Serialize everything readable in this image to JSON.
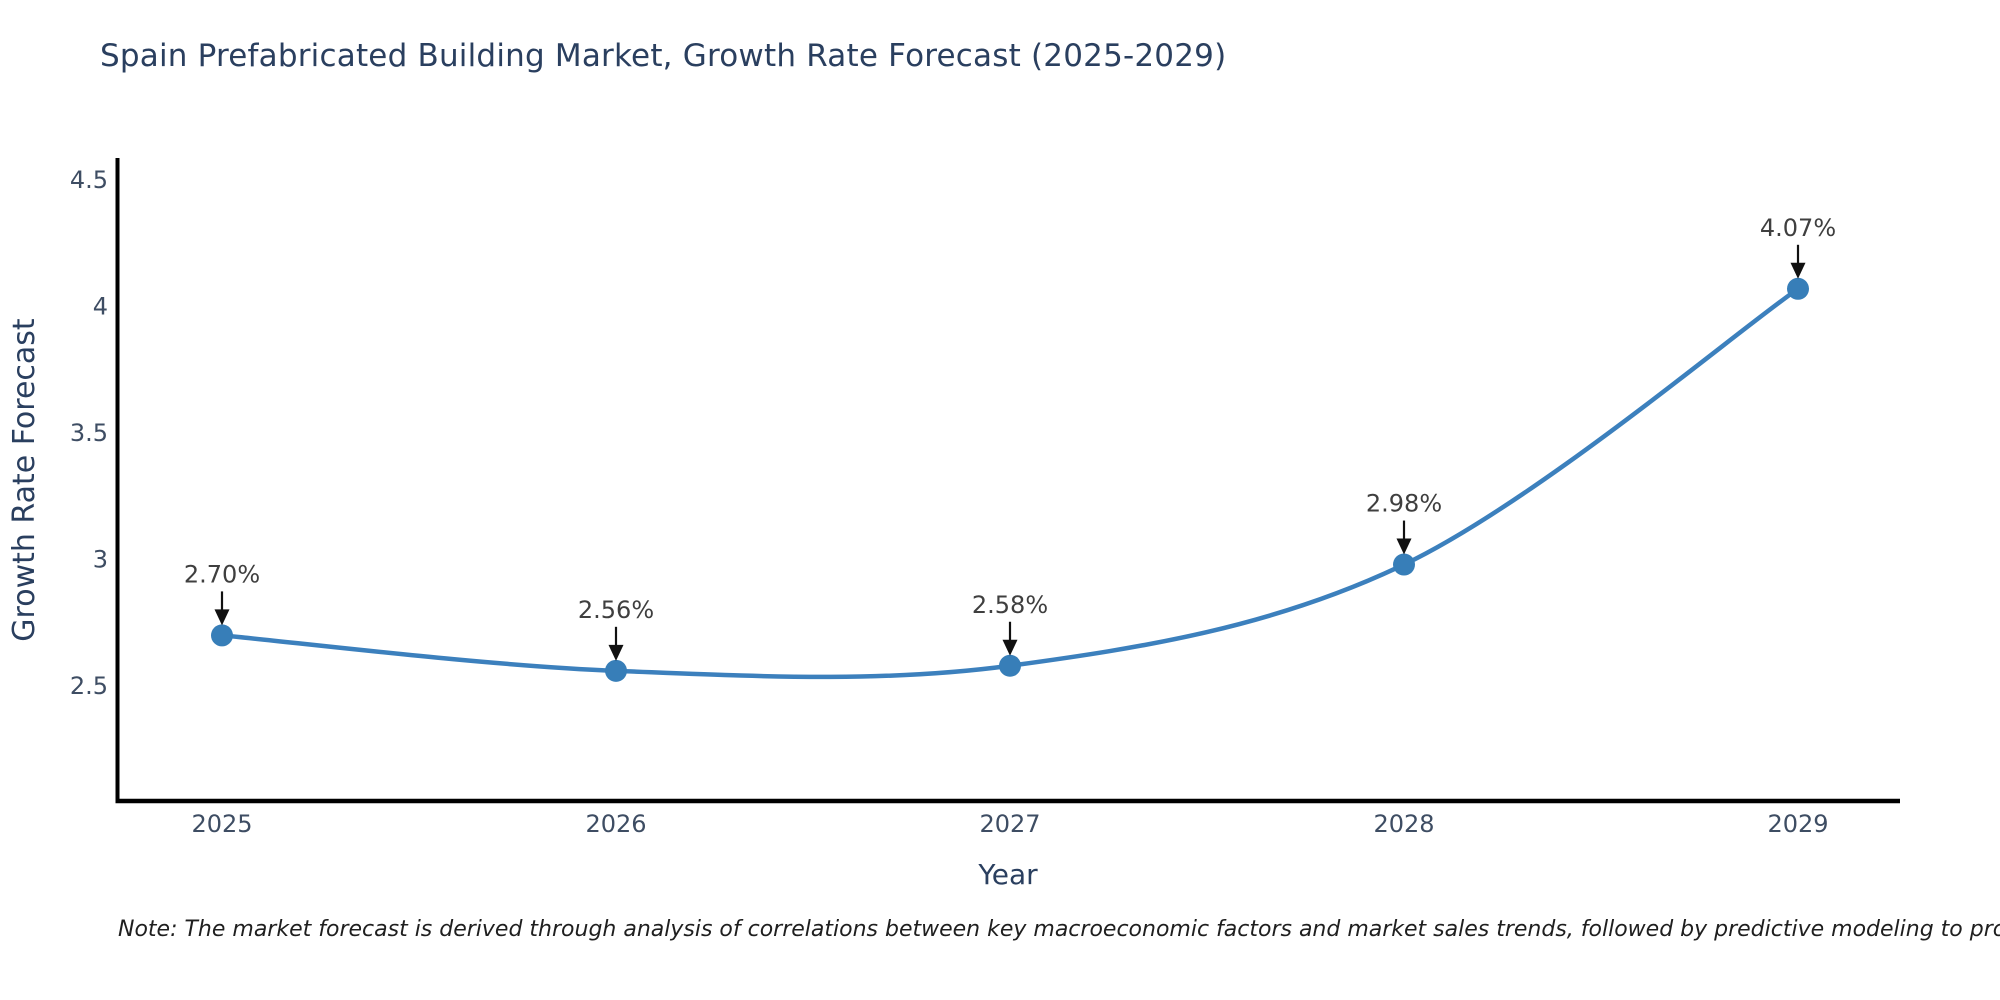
{
  "title": "Spain Prefabricated Building Market, Growth Rate Forecast (2025-2029)",
  "note": "Note: The market forecast is derived through analysis of correlations between key macroeconomic factors and market sales trends, followed by predictive modeling to project future sales",
  "chart_data": {
    "type": "line",
    "title": "Spain Prefabricated Building Market, Growth Rate Forecast (2025-2029)",
    "xlabel": "Year",
    "ylabel": "Growth Rate Forecast",
    "categories": [
      "2025",
      "2026",
      "2027",
      "2028",
      "2029"
    ],
    "series": [
      {
        "name": "Growth Rate Forecast",
        "values": [
          2.7,
          2.56,
          2.58,
          2.98,
          4.07
        ]
      }
    ],
    "point_labels": [
      "2.70%",
      "2.56%",
      "2.58%",
      "2.98%",
      "4.07%"
    ],
    "yticks": [
      "2.5",
      "3",
      "3.5",
      "4",
      "4.5"
    ],
    "ytick_values": [
      2.5,
      3.0,
      3.5,
      4.0,
      4.5
    ],
    "ylim": [
      2.05,
      4.55
    ],
    "grid": false,
    "legend": "none",
    "marker_style": "circle",
    "annotation_style": "value label with down arrow to point",
    "colors": {
      "line": "#3c80bd",
      "marker": "#377eb8",
      "axis_line": "#000000",
      "arrow": "#111111",
      "title_text": "#2a3f5f",
      "axis_title_text": "#2a3f5f",
      "tick_text": "#3e4d63",
      "annotation_text": "#3f3f3f",
      "note_text": "#1f1f1f",
      "background": "#ffffff"
    }
  }
}
